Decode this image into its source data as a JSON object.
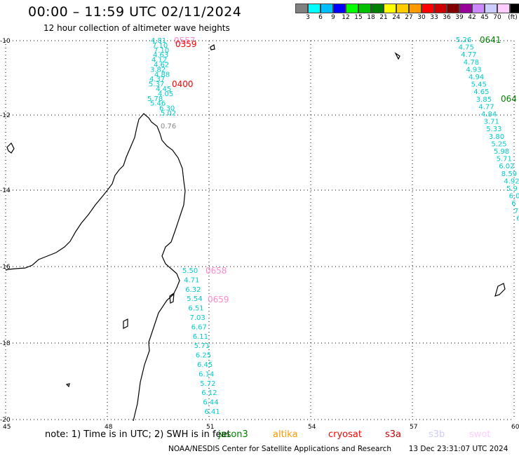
{
  "header": {
    "title": "00:00 – 11:59 UTC 02/11/2024",
    "subtitle": "12 hour collection of altimeter wave heights"
  },
  "legend": {
    "colors": [
      "#808080",
      "#00ffff",
      "#00bfff",
      "#0000ff",
      "#00ff00",
      "#00c000",
      "#008000",
      "#ffff00",
      "#ffcc00",
      "#ff9900",
      "#ff0000",
      "#cc0000",
      "#800000",
      "#990099",
      "#cc88ff",
      "#ccccff",
      "#ffccff",
      "#000000"
    ],
    "labels": [
      "3",
      "6",
      "9",
      "12",
      "15",
      "18",
      "21",
      "24",
      "27",
      "30",
      "33",
      "36",
      "39",
      "42",
      "45",
      "70",
      "(ft)"
    ]
  },
  "map": {
    "lat_labels": [
      "-10",
      "-12",
      "-14",
      "-16",
      "-18",
      "-20"
    ],
    "lon_labels": [
      "45",
      "48",
      "51",
      "54",
      "57",
      "60"
    ],
    "pass_labels": [
      {
        "text": "0557",
        "color": "#ff88cc"
      },
      {
        "text": "0359",
        "color": "#ff0000"
      },
      {
        "text": "0400",
        "color": "#ff0000"
      },
      {
        "text": "0641",
        "color": "#008000"
      },
      {
        "text": "064",
        "color": "#008000"
      },
      {
        "text": "0658",
        "color": "#ff88cc"
      },
      {
        "text": "0659",
        "color": "#ff88cc"
      }
    ],
    "track_west_top": [
      "4.81",
      "7.10",
      "7.10",
      "4.63",
      "4.12",
      "4.62",
      "3.82",
      "4.88",
      "4.37",
      "5.37",
      "4.45",
      "4.05",
      "5.78",
      "5.46",
      "6.30",
      "5.02"
    ],
    "grey_value": "0.76",
    "track_east": [
      "5.26",
      "4.75",
      "4.77",
      "4.78",
      "4.93",
      "4.94",
      "5.45",
      "4.65",
      "3.85",
      "4.77",
      "4.84",
      "3.71",
      "5.33",
      "3.80",
      "5.25",
      "5.98",
      "5.71",
      "6.02",
      "8.59",
      "4.92",
      "5.9",
      "6.0",
      "6",
      "7",
      "6"
    ],
    "track_south": [
      "5.50",
      "4.71",
      "6.32",
      "5.54",
      "6.51",
      "7.03",
      "6.67",
      "6.11",
      "5.71",
      "6.25",
      "6.45",
      "6.14",
      "5.72",
      "6.12",
      "6.44",
      "6.41"
    ]
  },
  "notes": {
    "note_text": "note:  1) Time is in UTC;  2) SWH is in feet",
    "satellites": [
      {
        "name": "jason3",
        "color": "#008000"
      },
      {
        "name": "altika",
        "color": "#ff9900"
      },
      {
        "name": "cryosat",
        "color": "#ff0000"
      },
      {
        "name": "s3a",
        "color": "#cc0000"
      },
      {
        "name": "s3b",
        "color": "#ccccff"
      },
      {
        "name": "swot",
        "color": "#ffccff"
      }
    ]
  },
  "footer": {
    "credit": "NOAA/NESDIS Center for Satellite Applications and Research",
    "timestamp": "13 Dec 23:31:07 UTC 2024"
  }
}
